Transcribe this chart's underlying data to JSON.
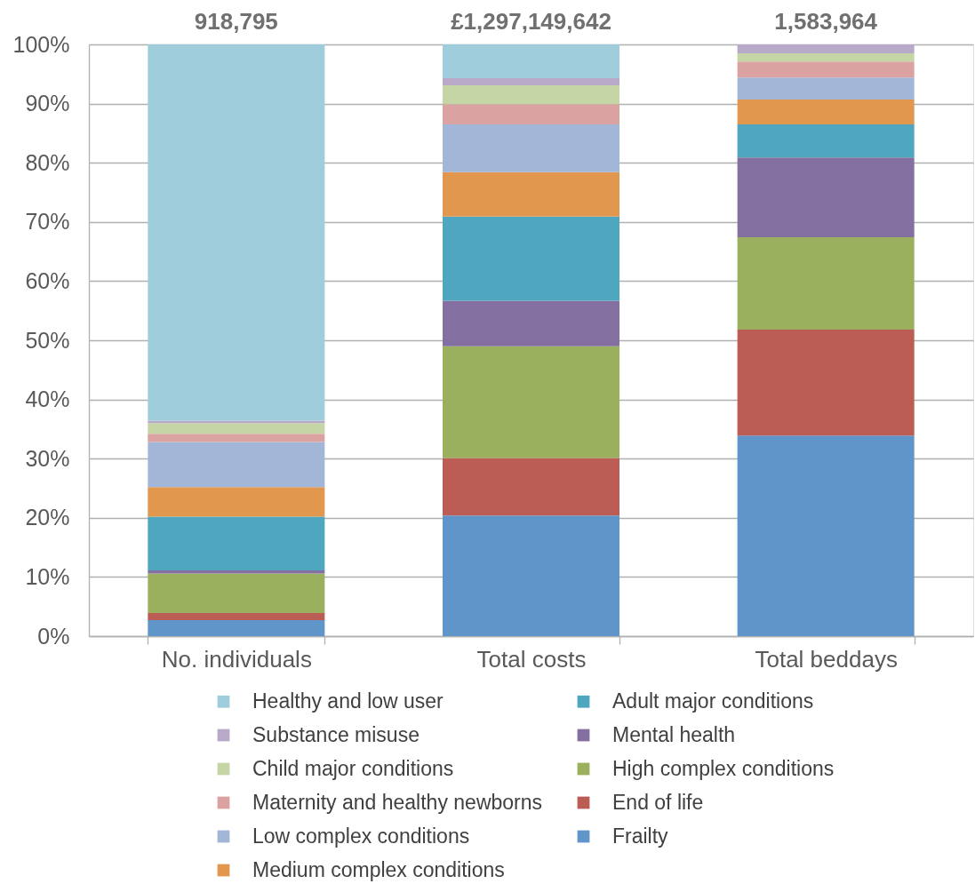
{
  "chart_data": {
    "type": "bar",
    "stacked": true,
    "categories": [
      "No. individuals",
      "Total costs",
      "Total beddays"
    ],
    "ylim": [
      0,
      100
    ],
    "yticks": [
      {
        "value": 0,
        "label": "0%"
      },
      {
        "value": 10,
        "label": "10%"
      },
      {
        "value": 20,
        "label": "20%"
      },
      {
        "value": 30,
        "label": "30%"
      },
      {
        "value": 40,
        "label": "40%"
      },
      {
        "value": 50,
        "label": "50%"
      },
      {
        "value": 60,
        "label": "60%"
      },
      {
        "value": 70,
        "label": "70%"
      },
      {
        "value": 80,
        "label": "80%"
      },
      {
        "value": 90,
        "label": "90%"
      },
      {
        "value": 100,
        "label": "100%"
      }
    ],
    "grid": "y",
    "legend": "bottom",
    "annotations": [
      {
        "text": "918,795",
        "x": "No. individuals",
        "y": 100
      },
      {
        "text": "£1,297,149,642",
        "x": "Total costs",
        "y": 100
      },
      {
        "text": "1,583,964",
        "x": "Total beddays",
        "y": 100
      }
    ],
    "series": [
      {
        "name": "Frailty",
        "color": "#5f95c8",
        "values": [
          2.7,
          20.4,
          33.9
        ]
      },
      {
        "name": "End of life",
        "color": "#bb5c55",
        "values": [
          1.2,
          9.7,
          17.9
        ]
      },
      {
        "name": "High complex conditions",
        "color": "#9bb05e",
        "values": [
          6.7,
          18.9,
          15.6
        ]
      },
      {
        "name": "Mental health",
        "color": "#8470a0",
        "values": [
          0.5,
          7.7,
          13.5
        ]
      },
      {
        "name": "Adult major conditions",
        "color": "#4fa7bf",
        "values": [
          9.1,
          14.2,
          5.6
        ]
      },
      {
        "name": "Medium complex conditions",
        "color": "#e2974f",
        "values": [
          5.0,
          7.5,
          4.2
        ]
      },
      {
        "name": "Low complex conditions",
        "color": "#a2b6d8",
        "values": [
          7.6,
          8.1,
          3.7
        ]
      },
      {
        "name": "Maternity and healthy newborns",
        "color": "#daa3a1",
        "values": [
          1.4,
          3.4,
          2.7
        ]
      },
      {
        "name": "Child major conditions",
        "color": "#c5d5a5",
        "values": [
          1.8,
          3.2,
          1.4
        ]
      },
      {
        "name": "Substance misuse",
        "color": "#b8a9c9",
        "values": [
          0.4,
          1.2,
          1.5
        ]
      },
      {
        "name": "Healthy and low user",
        "color": "#a0cddc",
        "values": [
          63.6,
          5.7,
          null
        ]
      }
    ]
  }
}
